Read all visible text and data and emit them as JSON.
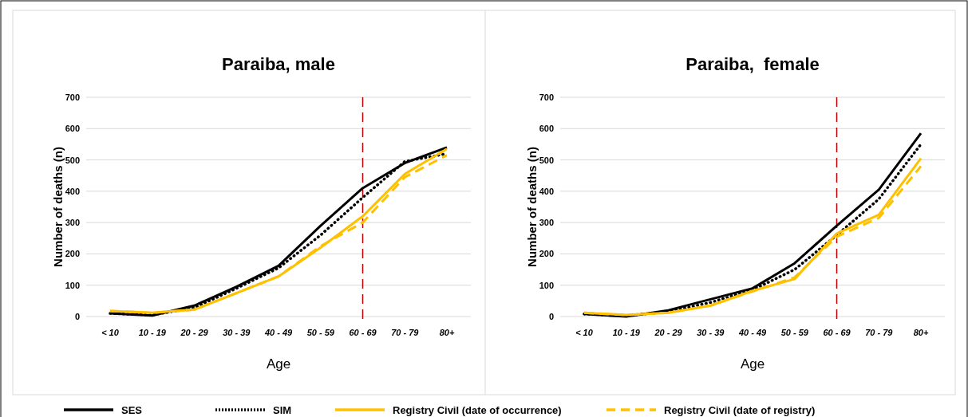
{
  "chart_data": [
    {
      "type": "line",
      "title": "Paraiba, male",
      "xlabel": "Age",
      "ylabel": "Number of deaths (n)",
      "categories": [
        "< 10",
        "10 - 19",
        "20 - 29",
        "30 - 39",
        "40 - 49",
        "50 - 59",
        "60 - 69",
        "70 - 79",
        "80+"
      ],
      "ylim": [
        0,
        700
      ],
      "yticks": [
        0,
        100,
        200,
        300,
        400,
        500,
        600,
        700
      ],
      "grid": "y",
      "legend": "bottom",
      "ref_lines": [
        {
          "axis": "x",
          "value": "60 - 69",
          "color": "#c00000",
          "line_style": "dashed"
        }
      ],
      "series": [
        {
          "name": "SES",
          "color": "#000000",
          "line_style": "solid",
          "values": [
            10,
            3,
            35,
            95,
            162,
            290,
            410,
            490,
            540
          ]
        },
        {
          "name": "SIM",
          "color": "#000000",
          "line_style": "dotted",
          "values": [
            10,
            5,
            28,
            90,
            155,
            260,
            380,
            495,
            520
          ]
        },
        {
          "name": "Registry Civil (date of occurrence)",
          "color": "#ffc000",
          "line_style": "solid",
          "values": [
            18,
            12,
            22,
            75,
            128,
            220,
            320,
            455,
            535
          ]
        },
        {
          "name": "Registry Civil (date of registry)",
          "color": "#ffc000",
          "line_style": "dashed",
          "values": [
            18,
            12,
            22,
            75,
            128,
            225,
            300,
            445,
            515
          ]
        }
      ]
    },
    {
      "type": "line",
      "title": "Paraiba,  female",
      "xlabel": "Age",
      "ylabel": "Number of deaths (n)",
      "categories": [
        "< 10",
        "10 - 19",
        "20 - 29",
        "30 - 39",
        "40 - 49",
        "50 - 59",
        "60 - 69",
        "70 - 79",
        "80+"
      ],
      "ylim": [
        0,
        700
      ],
      "yticks": [
        0,
        100,
        200,
        300,
        400,
        500,
        600,
        700
      ],
      "grid": "y",
      "ref_lines": [
        {
          "axis": "x",
          "value": "60 - 69",
          "color": "#c00000",
          "line_style": "dashed"
        }
      ],
      "series": [
        {
          "color": "#000000",
          "line_style": "solid",
          "values": [
            8,
            0,
            20,
            55,
            90,
            170,
            290,
            405,
            585
          ]
        },
        {
          "color": "#000000",
          "line_style": "dotted",
          "values": [
            8,
            3,
            15,
            45,
            85,
            150,
            260,
            375,
            550
          ]
        },
        {
          "color": "#ffc000",
          "line_style": "solid",
          "values": [
            12,
            5,
            12,
            35,
            82,
            120,
            265,
            325,
            505
          ]
        },
        {
          "color": "#ffc000",
          "line_style": "dashed",
          "values": [
            12,
            5,
            12,
            35,
            80,
            125,
            255,
            315,
            480
          ]
        }
      ]
    }
  ]
}
